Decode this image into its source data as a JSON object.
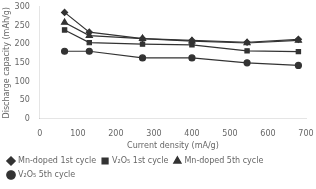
{
  "chart_data": {
    "type": "line",
    "x": [
      65,
      130,
      270,
      400,
      545,
      680
    ],
    "series": [
      {
        "name": "Mn-doped 1st cycle",
        "color": "#333333",
        "marker": "diamond",
        "values": [
          285,
          232,
          215,
          210,
          205,
          213
        ]
      },
      {
        "name": "V₂O₅ 1st cycle",
        "color": "#333333",
        "marker": "square",
        "values": [
          238,
          204,
          200,
          198,
          182,
          180
        ]
      },
      {
        "name": "Mn-doped 5th cycle",
        "color": "#333333",
        "marker": "triangle",
        "values": [
          258,
          223,
          215,
          208,
          203,
          210
        ]
      },
      {
        "name": "V₂O₅ 5th cycle",
        "color": "#333333",
        "marker": "circle",
        "values": [
          181,
          181,
          163,
          163,
          150,
          143
        ]
      }
    ],
    "xlabel": "Current density (mA/g)",
    "ylabel": "Discharge capacity (mAh/g)",
    "xlim": [
      0,
      700
    ],
    "ylim": [
      0,
      300
    ],
    "xticks": [
      0,
      100,
      200,
      300,
      400,
      500,
      600,
      700
    ],
    "yticks": [
      0,
      50,
      100,
      150,
      200,
      250,
      300
    ],
    "grid": false,
    "legend": "lower left"
  }
}
